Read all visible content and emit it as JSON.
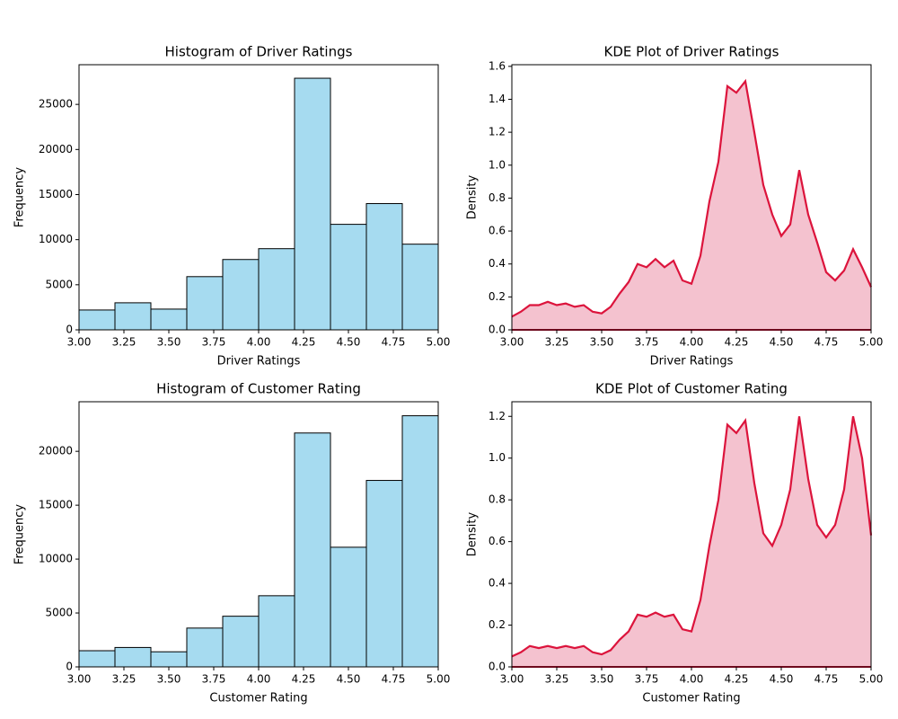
{
  "chart_data": [
    {
      "type": "histogram",
      "title": "Histogram of Driver Ratings",
      "xlabel": "Driver Ratings",
      "ylabel": "Frequency",
      "bins": [
        3.0,
        3.2,
        3.4,
        3.6,
        3.8,
        4.0,
        4.2,
        4.4,
        4.6,
        4.8,
        5.0
      ],
      "values": [
        2200,
        3000,
        2300,
        5900,
        7800,
        9000,
        27900,
        11700,
        14000,
        9500
      ],
      "color": "#a6dbf0",
      "edgecolor": "#000000",
      "xlim": [
        3,
        5
      ],
      "xticks": [
        {
          "value": 3,
          "label": "3.00"
        },
        {
          "value": 3.25,
          "label": "3.25"
        },
        {
          "value": 3.5,
          "label": "3.50"
        },
        {
          "value": 3.75,
          "label": "3.75"
        },
        {
          "value": 4,
          "label": "4.00"
        },
        {
          "value": 4.25,
          "label": "4.25"
        },
        {
          "value": 4.5,
          "label": "4.50"
        },
        {
          "value": 4.75,
          "label": "4.75"
        },
        {
          "value": 5,
          "label": "5.00"
        }
      ],
      "ylim": [
        0,
        29400
      ],
      "yticks": [
        0,
        5000,
        10000,
        15000,
        20000,
        25000
      ]
    },
    {
      "type": "kde",
      "title": "KDE Plot of Driver Ratings",
      "xlabel": "Driver Ratings",
      "ylabel": "Density",
      "x": [
        3.0,
        3.05,
        3.1,
        3.15,
        3.2,
        3.25,
        3.3,
        3.35,
        3.4,
        3.45,
        3.5,
        3.55,
        3.6,
        3.65,
        3.7,
        3.75,
        3.8,
        3.85,
        3.9,
        3.95,
        4.0,
        4.05,
        4.1,
        4.15,
        4.2,
        4.25,
        4.3,
        4.35,
        4.4,
        4.45,
        4.5,
        4.55,
        4.6,
        4.65,
        4.7,
        4.75,
        4.8,
        4.85,
        4.9,
        4.95,
        5.0
      ],
      "values": [
        0.08,
        0.11,
        0.15,
        0.15,
        0.17,
        0.15,
        0.16,
        0.14,
        0.15,
        0.11,
        0.1,
        0.14,
        0.22,
        0.29,
        0.4,
        0.38,
        0.43,
        0.38,
        0.42,
        0.3,
        0.28,
        0.45,
        0.78,
        1.02,
        1.48,
        1.44,
        1.51,
        1.2,
        0.88,
        0.7,
        0.57,
        0.64,
        0.97,
        0.7,
        0.53,
        0.35,
        0.3,
        0.36,
        0.49,
        0.38,
        0.26
      ],
      "color": "#dc143c",
      "fill": "#f4c2cf",
      "xlim": [
        3,
        5
      ],
      "xticks": [
        {
          "value": 3,
          "label": "3.00"
        },
        {
          "value": 3.25,
          "label": "3.25"
        },
        {
          "value": 3.5,
          "label": "3.50"
        },
        {
          "value": 3.75,
          "label": "3.75"
        },
        {
          "value": 4,
          "label": "4.00"
        },
        {
          "value": 4.25,
          "label": "4.25"
        },
        {
          "value": 4.5,
          "label": "4.50"
        },
        {
          "value": 4.75,
          "label": "4.75"
        },
        {
          "value": 5,
          "label": "5.00"
        }
      ],
      "ylim": [
        0,
        1.61
      ],
      "yticks": [
        {
          "value": 0,
          "label": "0.0"
        },
        0.2,
        0.4,
        0.6,
        0.8,
        {
          "value": 1,
          "label": "1.0"
        },
        1.2,
        1.4,
        1.6
      ]
    },
    {
      "type": "histogram",
      "title": "Histogram of Customer Rating",
      "xlabel": "Customer Rating",
      "ylabel": "Frequency",
      "bins": [
        3.0,
        3.2,
        3.4,
        3.6,
        3.8,
        4.0,
        4.2,
        4.4,
        4.6,
        4.8,
        5.0
      ],
      "values": [
        1500,
        1800,
        1400,
        3600,
        4700,
        6600,
        21700,
        11100,
        17300,
        23300
      ],
      "color": "#a6dbf0",
      "edgecolor": "#000000",
      "xlim": [
        3,
        5
      ],
      "xticks": [
        {
          "value": 3,
          "label": "3.00"
        },
        {
          "value": 3.25,
          "label": "3.25"
        },
        {
          "value": 3.5,
          "label": "3.50"
        },
        {
          "value": 3.75,
          "label": "3.75"
        },
        {
          "value": 4,
          "label": "4.00"
        },
        {
          "value": 4.25,
          "label": "4.25"
        },
        {
          "value": 4.5,
          "label": "4.50"
        },
        {
          "value": 4.75,
          "label": "4.75"
        },
        {
          "value": 5,
          "label": "5.00"
        }
      ],
      "ylim": [
        0,
        24600
      ],
      "yticks": [
        0,
        5000,
        10000,
        15000,
        20000
      ]
    },
    {
      "type": "kde",
      "title": "KDE Plot of Customer Rating",
      "xlabel": "Customer Rating",
      "ylabel": "Density",
      "x": [
        3.0,
        3.05,
        3.1,
        3.15,
        3.2,
        3.25,
        3.3,
        3.35,
        3.4,
        3.45,
        3.5,
        3.55,
        3.6,
        3.65,
        3.7,
        3.75,
        3.8,
        3.85,
        3.9,
        3.95,
        4.0,
        4.05,
        4.1,
        4.15,
        4.2,
        4.25,
        4.3,
        4.35,
        4.4,
        4.45,
        4.5,
        4.55,
        4.6,
        4.65,
        4.7,
        4.75,
        4.8,
        4.85,
        4.9,
        4.95,
        5.0
      ],
      "values": [
        0.05,
        0.07,
        0.1,
        0.09,
        0.1,
        0.09,
        0.1,
        0.09,
        0.1,
        0.07,
        0.06,
        0.08,
        0.13,
        0.17,
        0.25,
        0.24,
        0.26,
        0.24,
        0.25,
        0.18,
        0.17,
        0.32,
        0.58,
        0.8,
        1.16,
        1.12,
        1.18,
        0.88,
        0.64,
        0.58,
        0.68,
        0.85,
        1.2,
        0.9,
        0.68,
        0.62,
        0.68,
        0.85,
        1.2,
        1.0,
        0.63
      ],
      "color": "#dc143c",
      "fill": "#f4c2cf",
      "xlim": [
        3,
        5
      ],
      "xticks": [
        {
          "value": 3,
          "label": "3.00"
        },
        {
          "value": 3.25,
          "label": "3.25"
        },
        {
          "value": 3.5,
          "label": "3.50"
        },
        {
          "value": 3.75,
          "label": "3.75"
        },
        {
          "value": 4,
          "label": "4.00"
        },
        {
          "value": 4.25,
          "label": "4.25"
        },
        {
          "value": 4.5,
          "label": "4.50"
        },
        {
          "value": 4.75,
          "label": "4.75"
        },
        {
          "value": 5,
          "label": "5.00"
        }
      ],
      "ylim": [
        0,
        1.27
      ],
      "yticks": [
        {
          "value": 0,
          "label": "0.0"
        },
        0.2,
        0.4,
        0.6,
        0.8,
        {
          "value": 1,
          "label": "1.0"
        },
        1.2
      ]
    }
  ]
}
